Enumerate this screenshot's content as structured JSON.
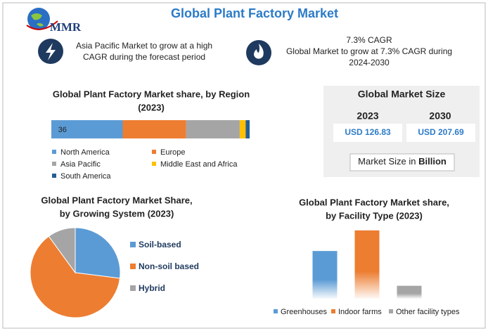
{
  "logo": "MMR",
  "title": "Global Plant Factory Market",
  "highlights": [
    {
      "lines": [
        "Asia Pacific Market to grow at a high",
        "CAGR during the forecast period"
      ]
    },
    {
      "heading": "7.3% CAGR",
      "lines": [
        "Global Market to grow at 7.3% CAGR during",
        "2024-2030"
      ]
    }
  ],
  "market_size": {
    "title": "Global Market Size",
    "years": [
      "2023",
      "2030"
    ],
    "values": [
      "USD 126.83",
      "USD 207.69"
    ],
    "note": "Market Size in ",
    "note_bold": "Billion"
  },
  "chart_data": [
    {
      "type": "stacked_bar",
      "title": [
        "Global Plant Factory Market share, by Region",
        "(2023)"
      ],
      "xlim": [
        0,
        100
      ],
      "series": [
        {
          "name": "North America",
          "color": "#5b9bd5",
          "values": [
            36
          ],
          "show_label": true
        },
        {
          "name": "Europe",
          "color": "#ed7d31",
          "values": [
            32
          ]
        },
        {
          "name": "Asia Pacific",
          "color": "#a5a5a5",
          "values": [
            27
          ]
        },
        {
          "name": "Middle East and Africa",
          "color": "#ffc000",
          "values": [
            3
          ]
        },
        {
          "name": "South America",
          "color": "#255e91",
          "values": [
            2
          ]
        }
      ]
    },
    {
      "type": "pie",
      "title": [
        "Global Plant Factory Market Share,",
        "by Growing System (2023)"
      ],
      "categories": [
        "Soil-based",
        "Non-soil based",
        "Hybrid"
      ],
      "values": [
        27,
        63,
        10
      ],
      "colors": [
        "#5b9bd5",
        "#ed7d31",
        "#a5a5a5"
      ]
    },
    {
      "type": "bar",
      "title": [
        "Global Plant Factory Market share,",
        "by Facility Type (2023)"
      ],
      "categories": [
        "Greenhouses",
        "Indoor farms",
        "Other facility types"
      ],
      "values": [
        37,
        53,
        10
      ],
      "colors": [
        "#5b9bd5",
        "#ed7d31",
        "#a5a5a5"
      ],
      "ylim": [
        0,
        54
      ]
    }
  ]
}
